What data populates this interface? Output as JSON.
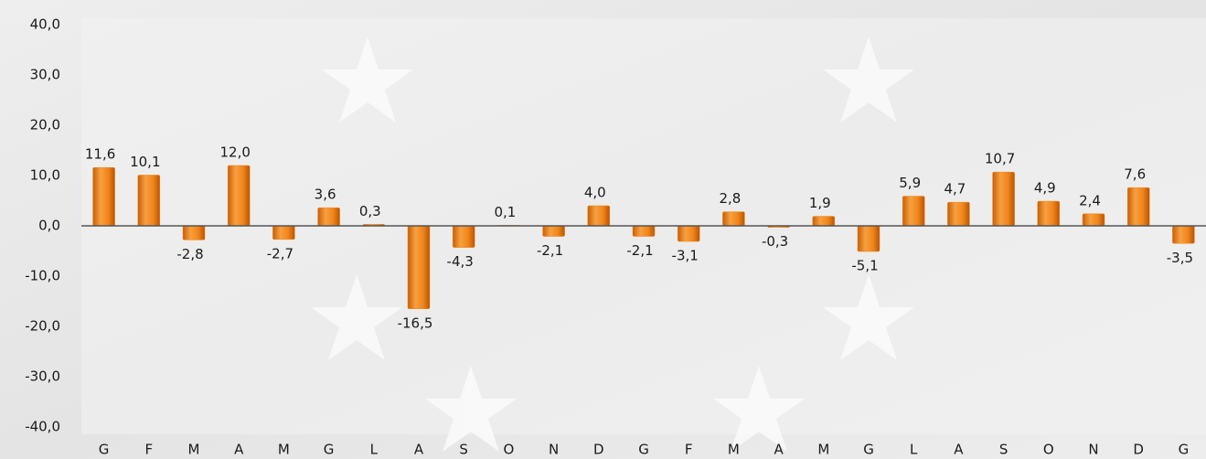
{
  "chart_data": {
    "type": "bar",
    "categories": [
      "G",
      "F",
      "M",
      "A",
      "M",
      "G",
      "L",
      "A",
      "S",
      "O",
      "N",
      "D",
      "G",
      "F",
      "M",
      "A",
      "M",
      "G",
      "L",
      "A",
      "S",
      "O",
      "N",
      "D",
      "G"
    ],
    "values": [
      11.6,
      10.1,
      -2.8,
      12.0,
      -2.7,
      3.6,
      0.3,
      -16.5,
      -4.3,
      0.1,
      -2.1,
      4.0,
      -2.1,
      -3.1,
      2.8,
      -0.3,
      1.9,
      -5.1,
      5.9,
      4.7,
      10.7,
      4.9,
      2.4,
      7.6,
      -3.5
    ],
    "value_labels": [
      "11,6",
      "10,1",
      "-2,8",
      "12,0",
      "-2,7",
      "3,6",
      "0,3",
      "-16,5",
      "-4,3",
      "0,1",
      "-2,1",
      "4,0",
      "-2,1",
      "-3,1",
      "2,8",
      "-0,3",
      "1,9",
      "-5,1",
      "5,9",
      "4,7",
      "10,7",
      "4,9",
      "2,4",
      "7,6",
      "-3,5"
    ],
    "color": "#f0851a",
    "ylim": [
      -40,
      40
    ],
    "yticks": [
      {
        "value": -40,
        "label": "-40,0"
      },
      {
        "value": -30,
        "label": "-30,0"
      },
      {
        "value": -20,
        "label": "-20,0"
      },
      {
        "value": -10,
        "label": "-10,0"
      },
      {
        "value": 0,
        "label": "0,0"
      },
      {
        "value": 10,
        "label": "10,0"
      },
      {
        "value": 20,
        "label": "20,0"
      },
      {
        "value": 30,
        "label": "30,0"
      },
      {
        "value": 40,
        "label": "40,0"
      }
    ],
    "grid": false
  }
}
